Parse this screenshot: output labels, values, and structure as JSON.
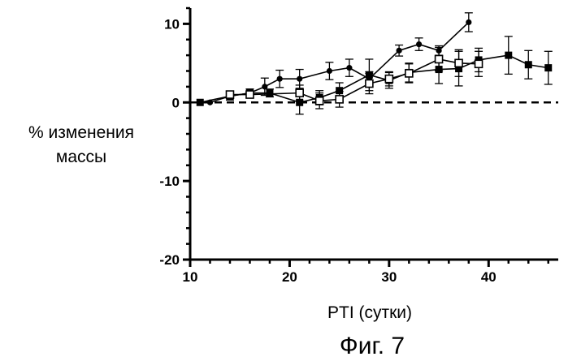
{
  "chart_data": {
    "type": "line",
    "title": "",
    "caption": "Фиг. 7",
    "xlabel": "PTI (сутки)",
    "ylabel": [
      "% изменения",
      "массы"
    ],
    "xlim": [
      10,
      47
    ],
    "ylim": [
      -20,
      12
    ],
    "xticks": [
      10,
      20,
      30,
      40
    ],
    "yticks": [
      -20,
      -10,
      0,
      10
    ],
    "xtick_labels": [
      "10",
      "20",
      "30",
      "40"
    ],
    "ytick_labels": [
      "-20",
      "-10",
      "0",
      "10"
    ],
    "zero_line": 0,
    "grid": false,
    "legend": "none",
    "series": [
      {
        "name": "series-circle",
        "marker": "circle",
        "x": [
          11,
          12,
          14,
          16,
          17.5,
          19,
          21,
          24,
          26,
          28,
          31,
          33,
          35,
          38
        ],
        "y": [
          0,
          0,
          0.8,
          1.2,
          2,
          3,
          3,
          4,
          4.4,
          3,
          6.6,
          7.4,
          6.6,
          10.2
        ],
        "err": [
          0,
          0,
          0.3,
          0.5,
          1.1,
          1.1,
          1.2,
          1.1,
          1.1,
          0.9,
          0.7,
          0.8,
          0.6,
          1.2
        ]
      },
      {
        "name": "series-filled-square",
        "marker": "square-filled",
        "x": [
          11,
          14,
          16,
          18,
          21,
          23,
          25,
          28,
          30,
          32,
          35,
          37,
          39,
          42,
          44,
          46
        ],
        "y": [
          0,
          0.8,
          1.2,
          1.2,
          0,
          0.6,
          1.5,
          3.5,
          2.8,
          3.8,
          4.2,
          4.3,
          5.4,
          6,
          4.8,
          4.4
        ],
        "err": [
          0,
          0.5,
          0.5,
          0.5,
          1.5,
          0.9,
          1,
          2,
          1,
          1.2,
          1.8,
          2.2,
          1.5,
          2.4,
          1.8,
          2.1
        ]
      },
      {
        "name": "series-open-square",
        "marker": "square-open",
        "x": [
          14,
          16,
          21,
          23,
          25,
          28,
          30,
          32,
          35,
          37,
          39
        ],
        "y": [
          1,
          1,
          1.2,
          0.2,
          0.4,
          2.4,
          3,
          3.7,
          5.5,
          5,
          4.9
        ],
        "err": [
          0.4,
          0.4,
          1,
          1,
          1,
          1.3,
          0.9,
          1.2,
          1.5,
          1.7,
          1.6
        ]
      }
    ]
  }
}
